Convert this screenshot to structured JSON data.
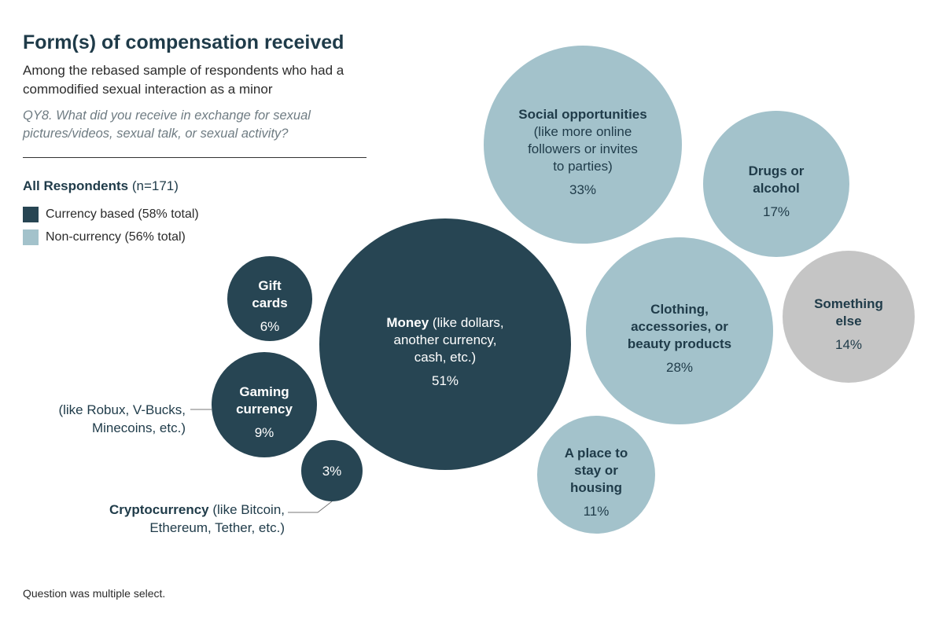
{
  "chart_data": {
    "type": "bubble",
    "title": "Form(s) of compensation received",
    "subtitle": "Among the rebased sample of respondents who had a commodified sexual interaction as a minor",
    "question": "QY8. What did you receive in exchange for sexual pictures/videos, sexual talk, or sexual activity?",
    "legend_heading_bold": "All Respondents",
    "legend_heading_n": "(n=171)",
    "legend": [
      {
        "label": "Currency based (58% total)",
        "color": "#274553"
      },
      {
        "label": "Non-currency (56% total)",
        "color": "#a3c2cb"
      }
    ],
    "footnote": "Question was multiple select.",
    "colors": {
      "currency": "#274553",
      "non_currency": "#a3c2cb",
      "other": "#c5c5c5"
    },
    "bubbles": [
      {
        "id": "money",
        "group": "currency",
        "bold": [],
        "normal": [
          "Money (like dollars,",
          "another currency,",
          "cash, etc.)"
        ],
        "bold_prefix": "Money",
        "value": 51,
        "value_label": "51%"
      },
      {
        "id": "gift",
        "group": "currency",
        "bold": [
          "Gift",
          "cards"
        ],
        "normal": [],
        "value": 6,
        "value_label": "6%"
      },
      {
        "id": "gaming",
        "group": "currency",
        "bold": [
          "Gaming",
          "currency"
        ],
        "normal": [],
        "value": 9,
        "value_label": "9%"
      },
      {
        "id": "crypto",
        "group": "currency",
        "bold": [],
        "normal": [],
        "value": 3,
        "value_label": "3%"
      },
      {
        "id": "social",
        "group": "non_currency",
        "bold": [
          "Social opportunities"
        ],
        "normal": [
          "(like more online",
          "followers or invites",
          "to parties)"
        ],
        "value": 33,
        "value_label": "33%"
      },
      {
        "id": "drugs",
        "group": "non_currency",
        "bold": [
          "Drugs or",
          "alcohol"
        ],
        "normal": [],
        "value": 17,
        "value_label": "17%"
      },
      {
        "id": "clothing",
        "group": "non_currency",
        "bold": [
          "Clothing,",
          "accessories, or",
          "beauty products"
        ],
        "normal": [],
        "value": 28,
        "value_label": "28%"
      },
      {
        "id": "else",
        "group": "other",
        "bold": [
          "Something",
          "else"
        ],
        "normal": [],
        "value": 14,
        "value_label": "14%"
      },
      {
        "id": "housing",
        "group": "non_currency",
        "bold": [
          "A place to",
          "stay or",
          "housing"
        ],
        "normal": [],
        "value": 11,
        "value_label": "11%"
      }
    ],
    "annotations": {
      "gaming": [
        "(like Robux, V-Bucks,",
        "Minecoins, etc.)"
      ],
      "crypto_bold": "Cryptocurrency",
      "crypto_rest": [
        "(like Bitcoin,",
        "Ethereum, Tether, etc.)"
      ]
    }
  }
}
